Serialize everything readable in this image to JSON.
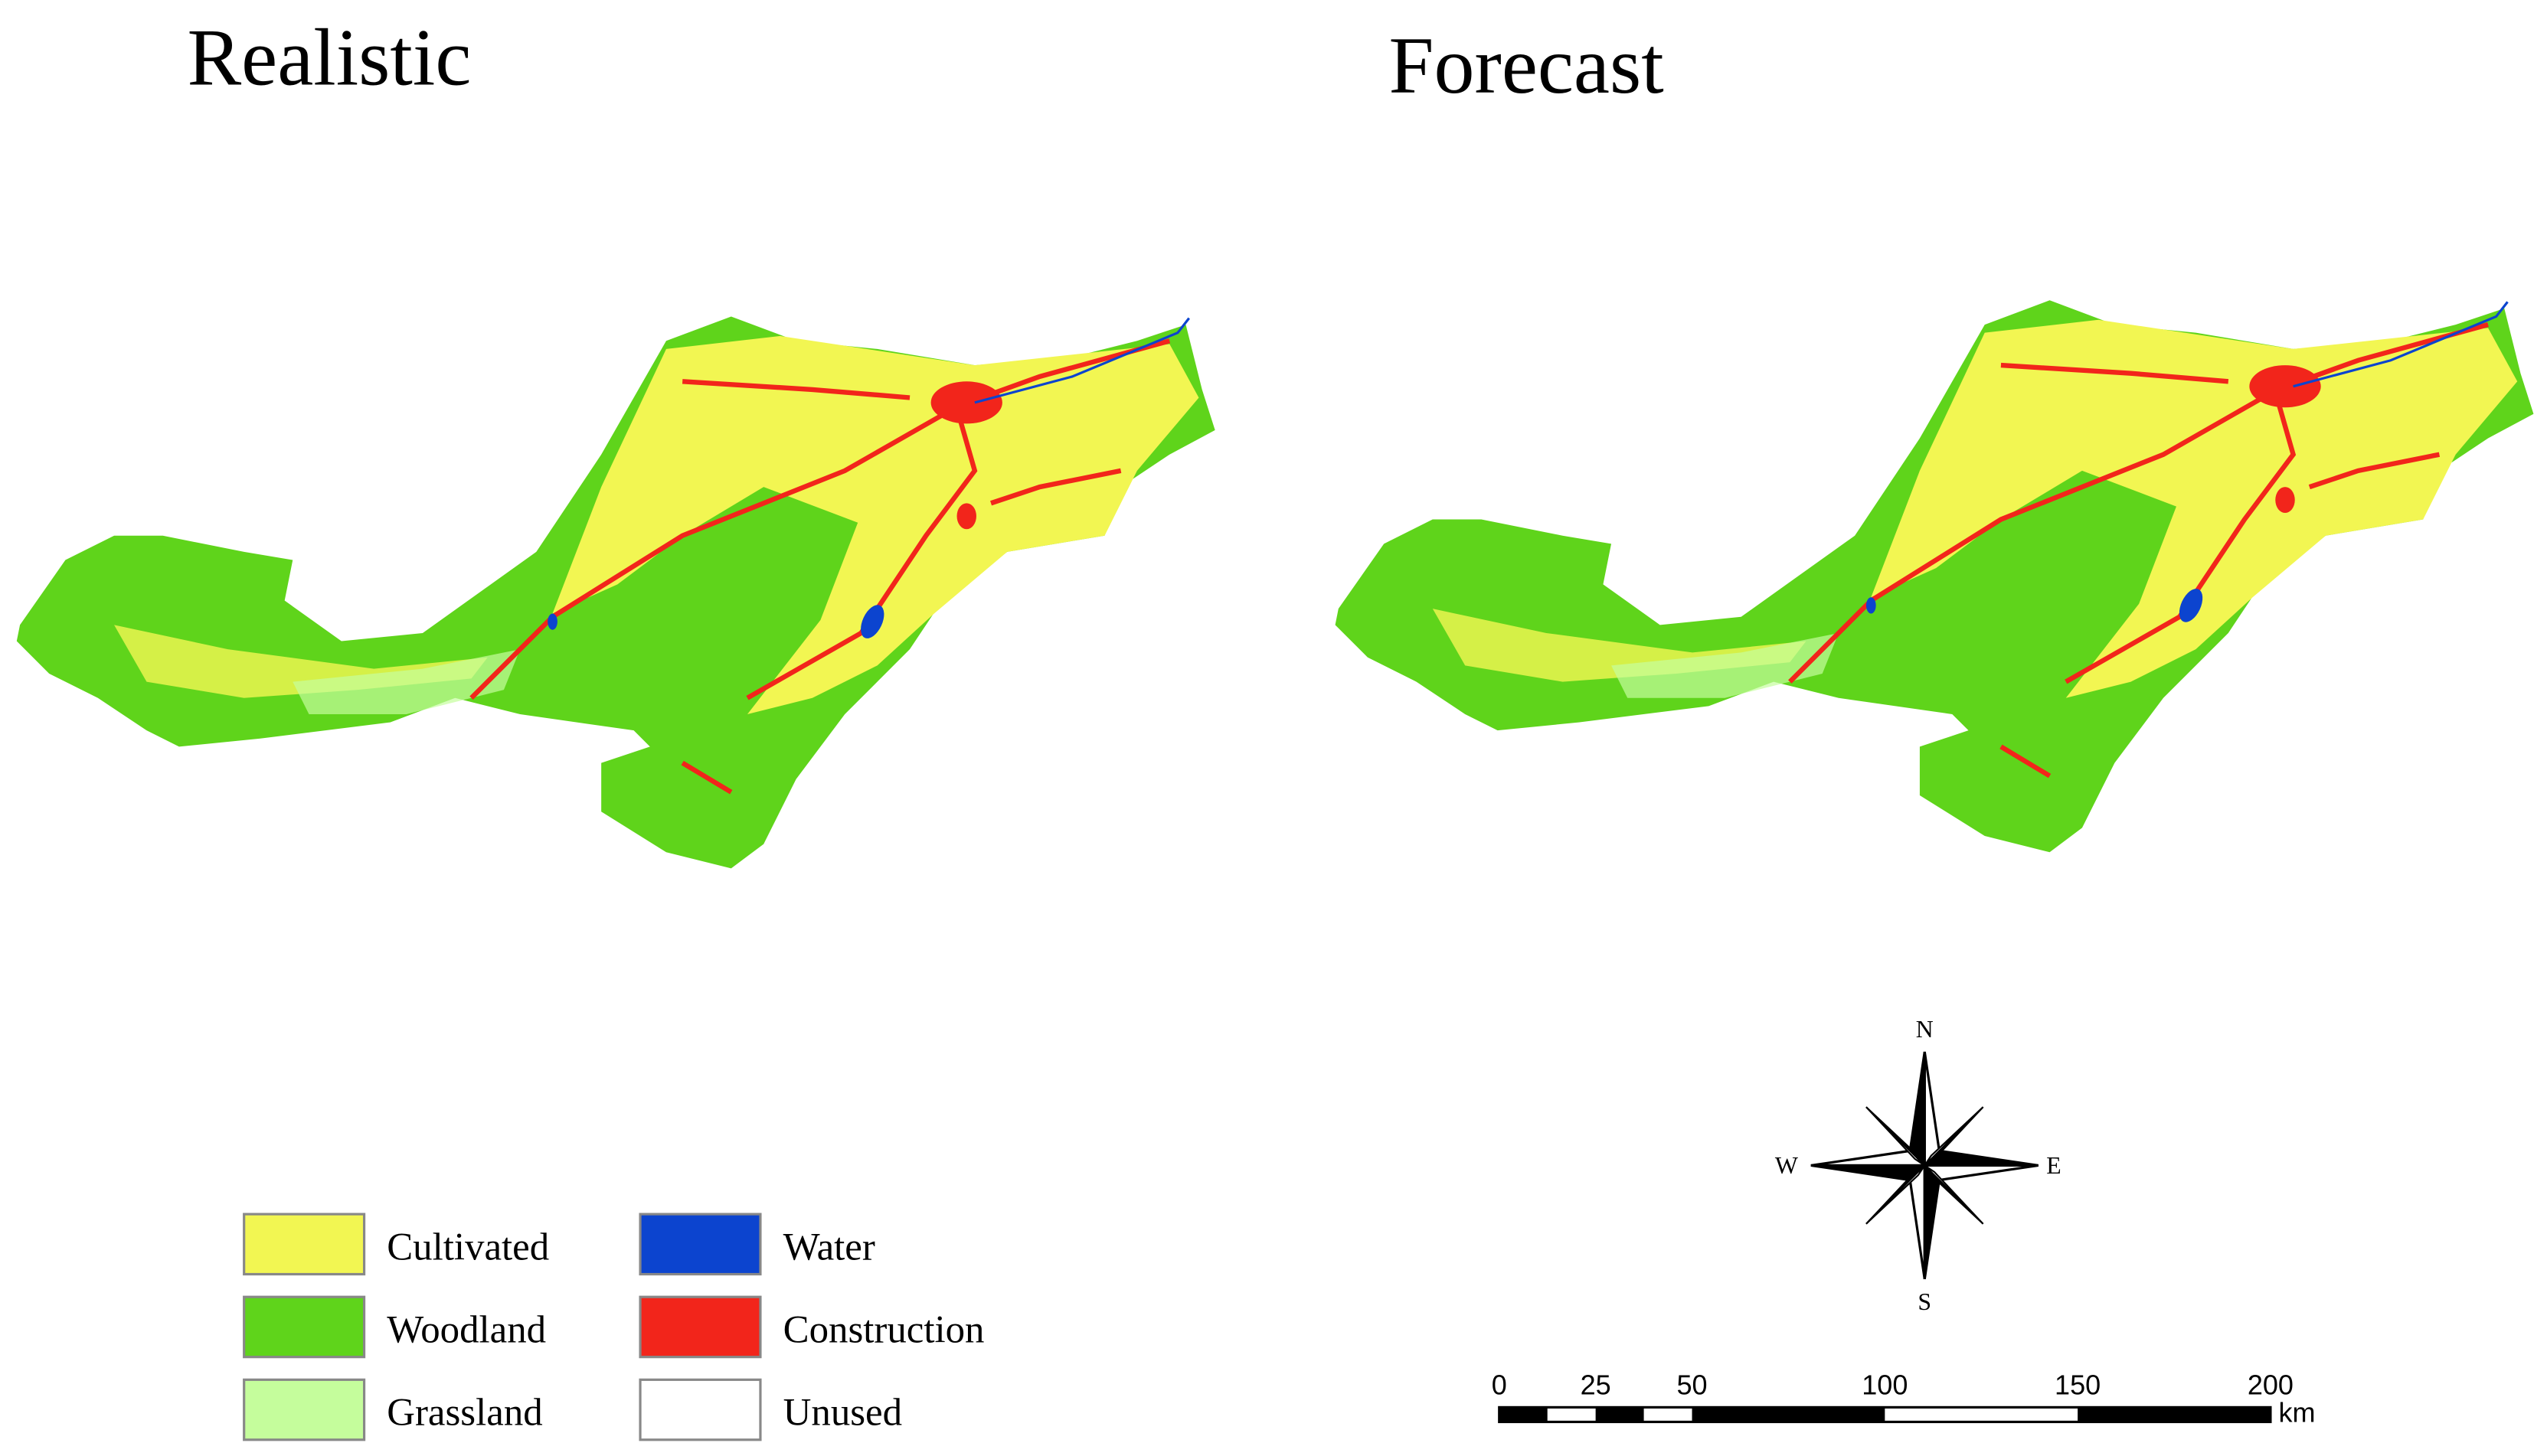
{
  "maps": [
    {
      "title": "Realistic"
    },
    {
      "title": "Forecast"
    }
  ],
  "legend": [
    {
      "label": "Cultivated",
      "color": "#f2f652"
    },
    {
      "label": "Woodland",
      "color": "#5fd41b"
    },
    {
      "label": "Grassland",
      "color": "#c5fd9c"
    },
    {
      "label": "Water",
      "color": "#0c44cf"
    },
    {
      "label": "Construction",
      "color": "#f2251b"
    },
    {
      "label": "Unused",
      "color": "#ffffff"
    }
  ],
  "compass": {
    "north": "N",
    "south": "S",
    "west": "W",
    "east": "E"
  },
  "scale_bar": {
    "ticks": [
      0,
      25,
      50,
      100,
      150,
      200
    ],
    "unit": "km"
  }
}
